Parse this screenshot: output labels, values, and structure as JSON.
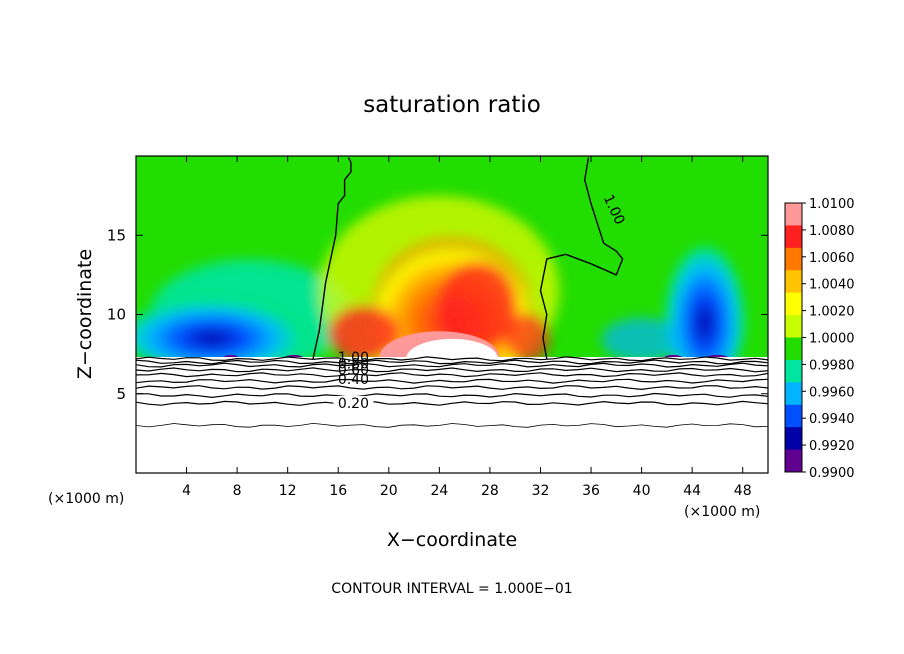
{
  "chart_data": {
    "type": "heatmap",
    "title": "saturation ratio",
    "xlabel": "X−coordinate",
    "ylabel": "Z−coordinate",
    "x_unit_left": "(×1000 m)",
    "x_unit_right": "(×1000 m)",
    "footer": "CONTOUR INTERVAL = 1.000E−01",
    "xlim": [
      0,
      50
    ],
    "ylim": [
      0,
      20
    ],
    "x_ticks": [
      4,
      8,
      12,
      16,
      20,
      24,
      28,
      32,
      36,
      40,
      44,
      48
    ],
    "y_ticks": [
      5,
      10,
      15
    ],
    "colorbar": {
      "range": [
        0.99,
        1.01
      ],
      "labels": [
        "1.0100",
        "1.0080",
        "1.0060",
        "1.0040",
        "1.0020",
        "1.0000",
        "0.9980",
        "0.9960",
        "0.9940",
        "0.9920",
        "0.9900"
      ],
      "values": [
        1.01,
        1.008,
        1.006,
        1.004,
        1.002,
        1.0,
        0.998,
        0.996,
        0.994,
        0.992,
        0.99
      ],
      "colors": [
        "#ff9898",
        "#ff2020",
        "#ff7800",
        "#ffc400",
        "#ffff00",
        "#c8ff00",
        "#22dd00",
        "#00e5a0",
        "#00b4ff",
        "#0050ff",
        "#0000a8",
        "#600090"
      ]
    },
    "contour_labels": [
      "1.00",
      "0.80",
      "0.60",
      "0.40",
      "0.20",
      "1.00"
    ],
    "contour_label_values": [
      1.0,
      0.8,
      0.6,
      0.4,
      0.2,
      1.0
    ],
    "contours": [
      {
        "level": 1.0,
        "x": [
          14.0,
          14.5,
          15.0,
          15.8,
          16.0,
          16.5,
          16.5,
          17.0,
          17.0,
          16.8
        ],
        "z": [
          7.2,
          9.0,
          12.0,
          15.0,
          17.0,
          17.5,
          18.5,
          19.0,
          19.6,
          19.9
        ]
      },
      {
        "level": 1.0,
        "x": [
          32.5,
          32.2,
          32.5,
          32.0,
          32.5,
          34.0,
          36.0,
          38.0,
          38.5,
          38.0,
          37.0,
          36.0,
          35.5,
          35.8
        ],
        "z": [
          7.2,
          8.5,
          10.0,
          11.5,
          13.5,
          13.8,
          13.2,
          12.5,
          13.5,
          14.0,
          14.5,
          17.0,
          18.5,
          19.9
        ]
      }
    ],
    "stratified_layer_z": [
      7.2,
      7.0,
      6.8,
      6.5,
      6.2,
      5.8,
      5.4,
      4.9,
      4.4,
      3.0
    ]
  }
}
